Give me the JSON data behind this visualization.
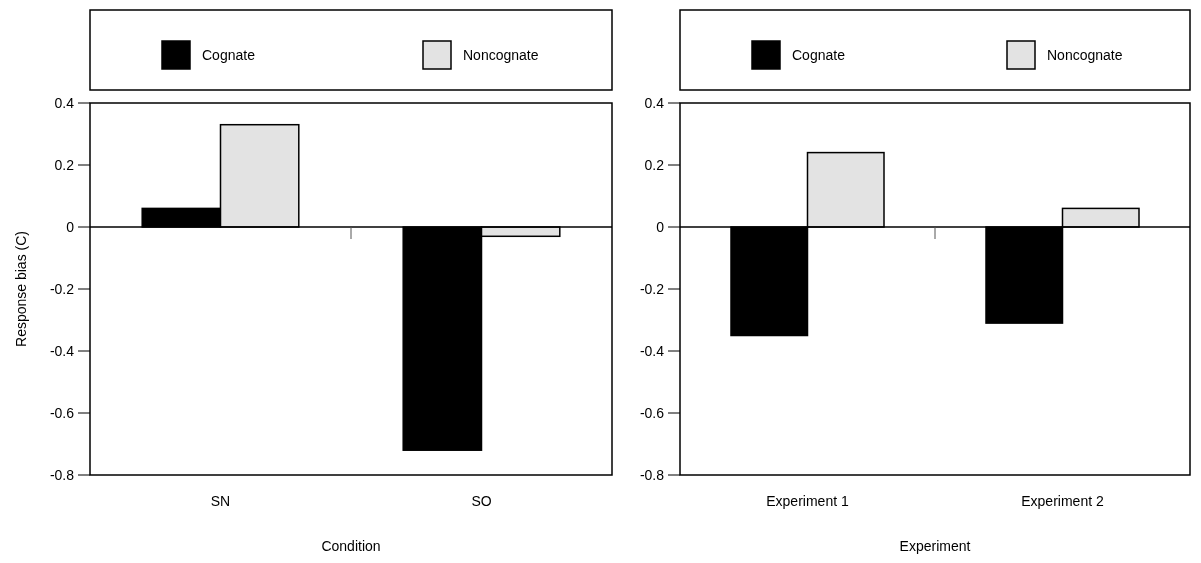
{
  "chart_data": [
    {
      "type": "bar",
      "xlabel": "Condition",
      "ylabel": "Response bias (C)",
      "categories": [
        "SN",
        "SO"
      ],
      "series": [
        {
          "name": "Cognate",
          "color": "#000000",
          "values": [
            0.06,
            -0.72
          ]
        },
        {
          "name": "Noncognate",
          "color": "#e3e3e3",
          "values": [
            0.33,
            -0.03
          ]
        }
      ],
      "ylim": [
        -0.8,
        0.4
      ],
      "yticks": [
        {
          "value": -0.8,
          "label": "-0.8"
        },
        {
          "value": -0.6,
          "label": "-0.6"
        },
        {
          "value": -0.4,
          "label": "-0.4"
        },
        {
          "value": -0.2,
          "label": "-0.2"
        },
        0,
        0.2,
        0.4
      ],
      "legend": "top"
    },
    {
      "type": "bar",
      "xlabel": "Experiment",
      "categories": [
        "Experiment 1",
        "Experiment 2"
      ],
      "series": [
        {
          "name": "Cognate",
          "color": "#000000",
          "values": [
            -0.35,
            -0.31
          ]
        },
        {
          "name": "Noncognate",
          "color": "#e3e3e3",
          "values": [
            0.24,
            0.06
          ]
        }
      ],
      "ylim": [
        -0.8,
        0.4
      ],
      "yticks": [
        {
          "value": -0.8,
          "label": "-0.8"
        },
        {
          "value": -0.6,
          "label": "-0.6"
        },
        {
          "value": -0.4,
          "label": "-0.4"
        },
        {
          "value": -0.2,
          "label": "-0.2"
        },
        0,
        0.2,
        0.4
      ],
      "legend": "top"
    }
  ]
}
